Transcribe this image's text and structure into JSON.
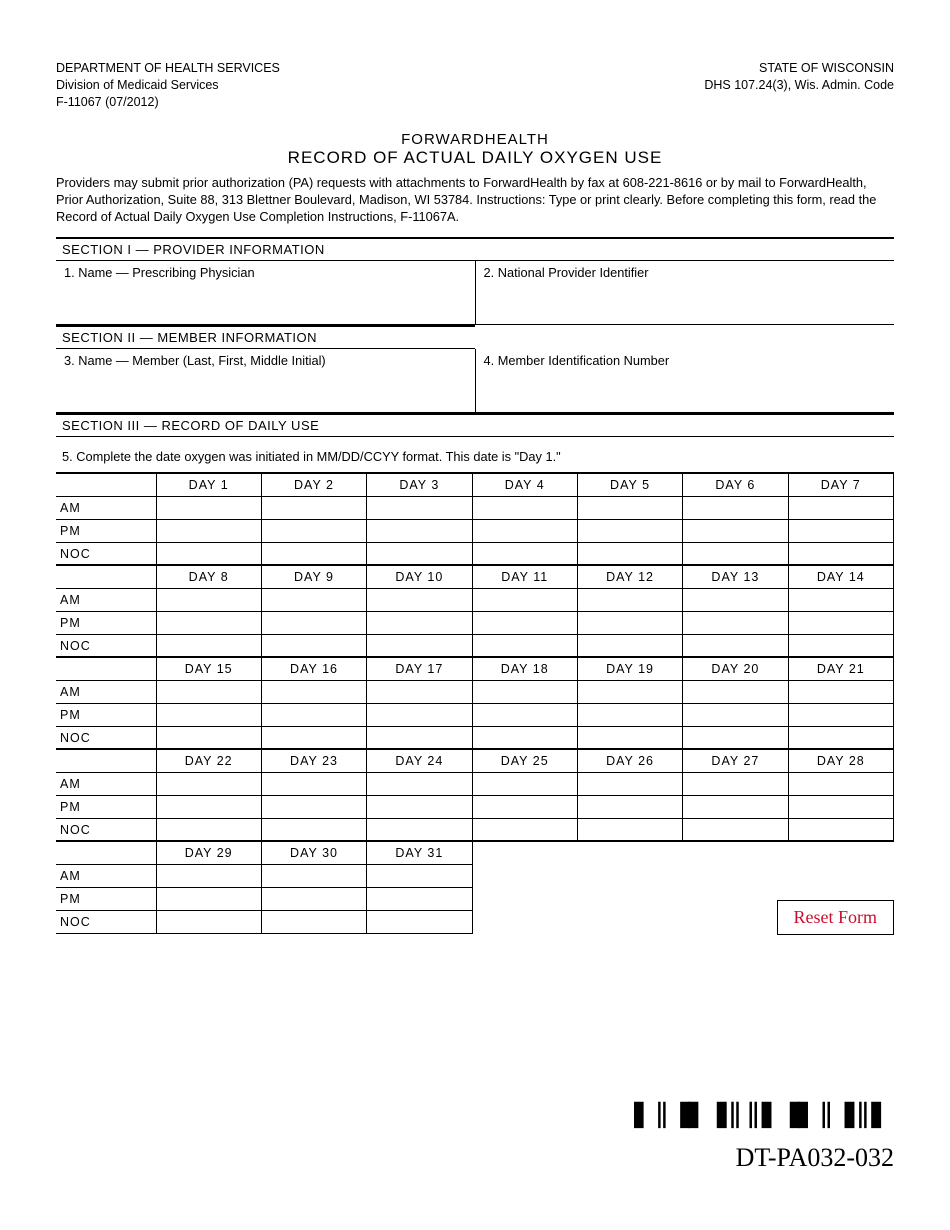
{
  "header": {
    "left": {
      "dept": "DEPARTMENT OF HEALTH SERVICES",
      "div": "Division of Medicaid Services",
      "formno": "F-11067 (07/2012)"
    },
    "right": {
      "state": "STATE OF WISCONSIN",
      "code": "DHS 107.24(3), Wis. Admin. Code"
    }
  },
  "title": {
    "line1": "FORWARDHEALTH",
    "line2": "RECORD OF ACTUAL DAILY OXYGEN USE"
  },
  "intro": "Providers may submit prior authorization (PA) requests with attachments to ForwardHealth by fax at 608-221-8616 or by mail to ForwardHealth, Prior Authorization, Suite 88, 313 Blettner Boulevard, Madison, WI 53784. Instructions: Type or print clearly. Before completing this form, read the Record of Actual Daily Oxygen Use Completion Instructions, F-11067A.",
  "sections": {
    "s1": {
      "title": "SECTION I — PROVIDER INFORMATION",
      "f1": "1.  Name — Prescribing Physician",
      "f2": "2.  National Provider Identifier"
    },
    "s2": {
      "title": "SECTION II — MEMBER INFORMATION",
      "f3": "3.  Name — Member (Last, First, Middle Initial)",
      "f4": "4.  Member Identification Number"
    },
    "s3": {
      "title": "SECTION III — RECORD OF DAILY USE",
      "instr": "5.  Complete the date oxygen was initiated in MM/DD/CCYY format. This date is \"Day 1.\""
    }
  },
  "calendar": {
    "row_labels": [
      "AM",
      "PM",
      "NOC"
    ],
    "day_prefix": "DAY",
    "total_days": 31,
    "cols_per_block": 7
  },
  "reset_label": "Reset Form",
  "barcode_text": "▌║▐▌▐║║▌▐▌║▐║▌▐▌║▐║▌▐▌║▐║▌▐▌║▐║",
  "form_code": "DT-PA032-032",
  "colors": {
    "reset_text": "#c8102e",
    "border": "#000000"
  }
}
